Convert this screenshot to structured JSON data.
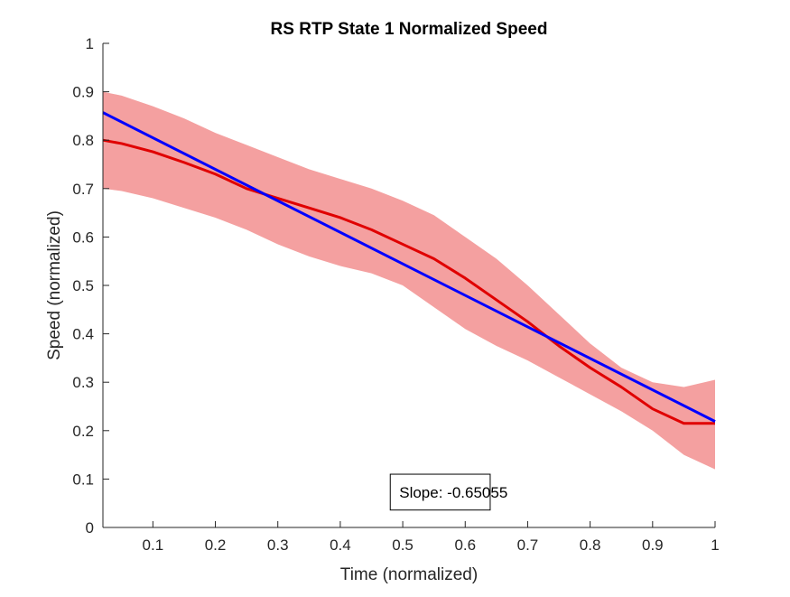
{
  "chart_data": {
    "type": "line",
    "title": "RS  RTP State 1 Normalized Speed",
    "xlabel": "Time (normalized)",
    "ylabel": "Speed (normalized)",
    "xlim": [
      0.02,
      1.0
    ],
    "ylim": [
      0,
      1
    ],
    "xticks": [
      0.1,
      0.2,
      0.3,
      0.4,
      0.5,
      0.6,
      0.7,
      0.8,
      0.9,
      1
    ],
    "xtick_labels": [
      "0.1",
      "0.2",
      "0.3",
      "0.4",
      "0.5",
      "0.6",
      "0.7",
      "0.8",
      "0.9",
      "1"
    ],
    "yticks": [
      0,
      0.1,
      0.2,
      0.3,
      0.4,
      0.5,
      0.6,
      0.7,
      0.8,
      0.9,
      1
    ],
    "ytick_labels": [
      "0",
      "0.1",
      "0.2",
      "0.3",
      "0.4",
      "0.5",
      "0.6",
      "0.7",
      "0.8",
      "0.9",
      "1"
    ],
    "grid": false,
    "legend": "none",
    "series": [
      {
        "role": "mean",
        "color": "#e00000",
        "x": [
          0.02,
          0.05,
          0.1,
          0.15,
          0.2,
          0.25,
          0.3,
          0.35,
          0.4,
          0.45,
          0.5,
          0.55,
          0.6,
          0.65,
          0.7,
          0.75,
          0.8,
          0.85,
          0.9,
          0.95,
          1.0
        ],
        "y": [
          0.8,
          0.793,
          0.776,
          0.754,
          0.73,
          0.7,
          0.68,
          0.66,
          0.64,
          0.615,
          0.585,
          0.555,
          0.515,
          0.47,
          0.425,
          0.375,
          0.33,
          0.29,
          0.245,
          0.215,
          0.215
        ]
      },
      {
        "role": "upper-band",
        "color": "#f4a0a0",
        "x": [
          0.02,
          0.05,
          0.1,
          0.15,
          0.2,
          0.25,
          0.3,
          0.35,
          0.4,
          0.45,
          0.5,
          0.55,
          0.6,
          0.65,
          0.7,
          0.75,
          0.8,
          0.85,
          0.9,
          0.95,
          1.0
        ],
        "y": [
          0.9,
          0.892,
          0.87,
          0.845,
          0.815,
          0.79,
          0.765,
          0.74,
          0.72,
          0.7,
          0.675,
          0.645,
          0.6,
          0.555,
          0.5,
          0.44,
          0.38,
          0.33,
          0.3,
          0.29,
          0.305
        ]
      },
      {
        "role": "lower-band",
        "color": "#f4a0a0",
        "x": [
          0.02,
          0.05,
          0.1,
          0.15,
          0.2,
          0.25,
          0.3,
          0.35,
          0.4,
          0.45,
          0.5,
          0.55,
          0.6,
          0.65,
          0.7,
          0.75,
          0.8,
          0.85,
          0.9,
          0.95,
          1.0
        ],
        "y": [
          0.7,
          0.695,
          0.68,
          0.66,
          0.64,
          0.615,
          0.585,
          0.56,
          0.54,
          0.525,
          0.5,
          0.455,
          0.41,
          0.375,
          0.345,
          0.31,
          0.275,
          0.24,
          0.2,
          0.15,
          0.12
        ]
      },
      {
        "role": "linear-fit",
        "color": "#0000ff",
        "x": [
          0.02,
          1.0
        ],
        "y": [
          0.857,
          0.219
        ]
      }
    ],
    "annotation": {
      "text": "Slope: -0.65055",
      "x_range": [
        0.48,
        0.64
      ],
      "y_range": [
        0.036,
        0.11
      ]
    }
  }
}
